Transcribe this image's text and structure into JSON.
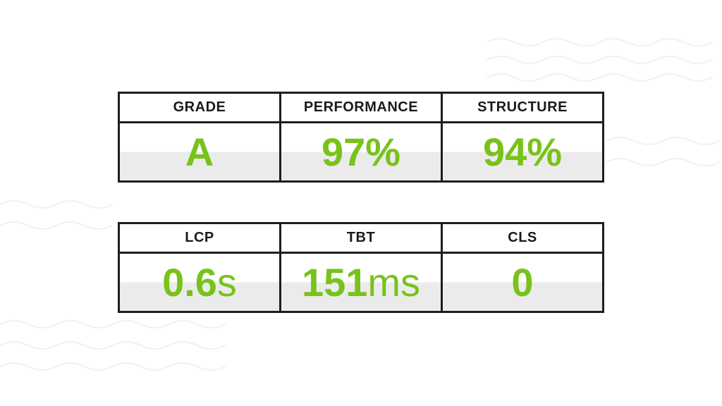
{
  "tables": [
    {
      "headers": [
        "GRADE",
        "PERFORMANCE",
        "STRUCTURE"
      ],
      "values": [
        {
          "number": "A"
        },
        {
          "number": "97%"
        },
        {
          "number": "94%"
        }
      ]
    },
    {
      "headers": [
        "LCP",
        "TBT",
        "CLS"
      ],
      "values": [
        {
          "number": "0.6",
          "unit": "s"
        },
        {
          "number": "151",
          "unit": "ms"
        },
        {
          "number": "0"
        }
      ]
    }
  ]
}
